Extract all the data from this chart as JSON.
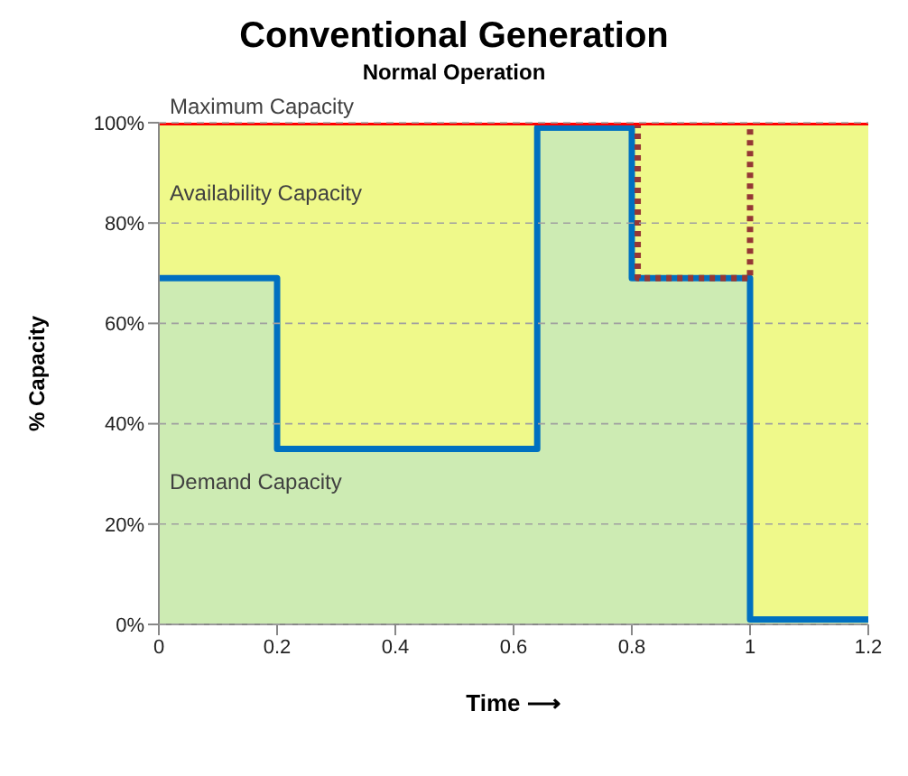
{
  "chart_data": {
    "type": "line",
    "title": "Conventional Generation",
    "subtitle": "Normal Operation",
    "xlabel": "Time ⟶",
    "ylabel": "% Capacity",
    "xlim": [
      0,
      1.2
    ],
    "xticks": [
      0,
      0.2,
      0.4,
      0.6,
      0.8,
      1,
      1.2
    ],
    "ylim": [
      0,
      100
    ],
    "yticks": [
      {
        "value": 0,
        "label": "0%"
      },
      {
        "value": 20,
        "label": "20%"
      },
      {
        "value": 40,
        "label": "40%"
      },
      {
        "value": 60,
        "label": "60%"
      },
      {
        "value": 80,
        "label": "80%"
      },
      {
        "value": 100,
        "label": "100%"
      }
    ],
    "grid": "y",
    "legend": false,
    "bands": [
      {
        "axis": "y",
        "from": 0,
        "to": 100,
        "label": "Availability Capacity",
        "color": "#eff98a"
      }
    ],
    "series": [
      {
        "name": "Demand Capacity",
        "type": "area",
        "color": "#cdebb3",
        "x": [
          0,
          0.2,
          0.2,
          0.64,
          0.64,
          0.8,
          0.8,
          1,
          1,
          1.2
        ],
        "values": [
          69,
          69,
          35,
          35,
          99,
          99,
          69,
          69,
          1,
          1
        ]
      },
      {
        "type": "step",
        "color": "#0070c0",
        "x": [
          0,
          0.2,
          0.64,
          0.8,
          1,
          1.2
        ],
        "values": [
          69,
          35,
          99,
          69,
          1,
          1
        ]
      },
      {
        "color": "#953735",
        "line_style": "dotted",
        "x": [
          0.81,
          0.81,
          1,
          1
        ],
        "values": [
          100,
          69,
          69,
          100
        ]
      },
      {
        "name": "Maximum Capacity",
        "color": "#ff0000",
        "x": [
          0,
          1.2
        ],
        "values": [
          100,
          100
        ]
      }
    ]
  }
}
